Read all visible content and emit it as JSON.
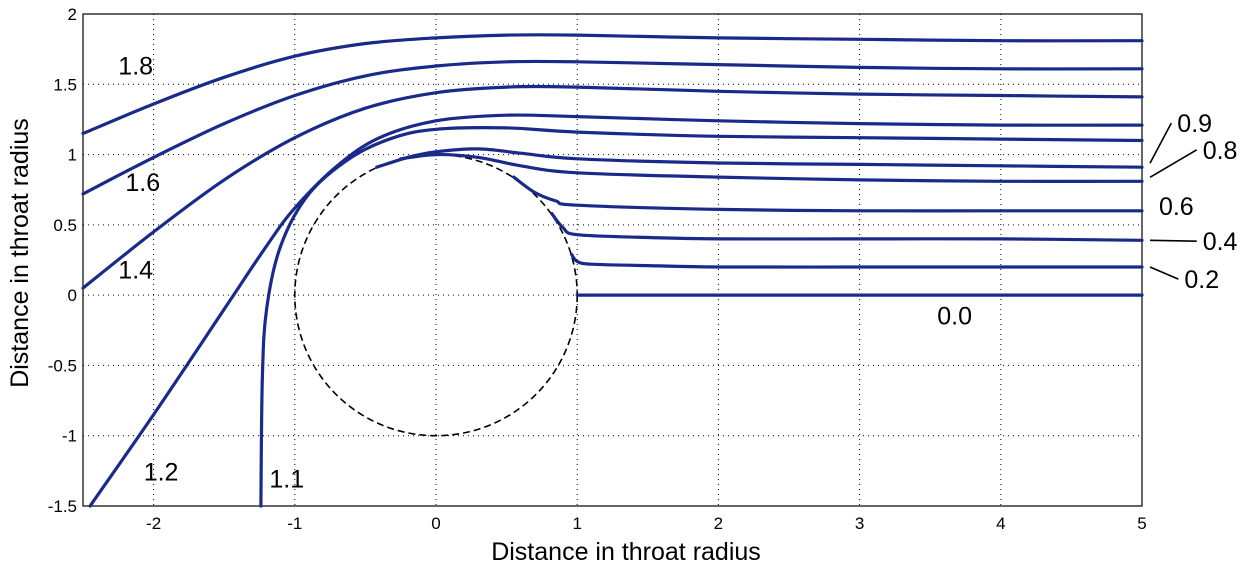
{
  "chart_data": {
    "type": "line",
    "title": "",
    "xlabel": "Distance in throat radius",
    "ylabel": "Distance in throat radius",
    "xlim": [
      -2.5,
      5
    ],
    "ylim": [
      -1.5,
      2
    ],
    "x_ticks": [
      "-2",
      "-1",
      "0",
      "1",
      "2",
      "3",
      "4",
      "5"
    ],
    "y_ticks": [
      "-1.5",
      "-1",
      "-0.5",
      "0",
      "0.5",
      "1",
      "1.5",
      "2"
    ],
    "grid": true,
    "line_color": "#1a2a8a",
    "reference_circle": {
      "center": [
        0,
        0
      ],
      "radius": 1,
      "style": "dashed"
    },
    "series": [
      {
        "name": "1.8",
        "points": [
          [
            -2.5,
            1.15
          ],
          [
            -2,
            1.36
          ],
          [
            -1.5,
            1.55
          ],
          [
            -1,
            1.7
          ],
          [
            -0.5,
            1.79
          ],
          [
            0,
            1.83
          ],
          [
            0.5,
            1.85
          ],
          [
            1,
            1.85
          ],
          [
            2,
            1.83
          ],
          [
            3,
            1.82
          ],
          [
            4,
            1.81
          ],
          [
            5,
            1.81
          ]
        ]
      },
      {
        "name": "1.6",
        "points": [
          [
            -2.5,
            0.72
          ],
          [
            -2,
            0.98
          ],
          [
            -1.5,
            1.22
          ],
          [
            -1,
            1.42
          ],
          [
            -0.5,
            1.56
          ],
          [
            0,
            1.63
          ],
          [
            0.5,
            1.66
          ],
          [
            1,
            1.66
          ],
          [
            2,
            1.64
          ],
          [
            3,
            1.62
          ],
          [
            4,
            1.61
          ],
          [
            5,
            1.61
          ]
        ]
      },
      {
        "name": "1.4",
        "points": [
          [
            -2.5,
            0.05
          ],
          [
            -2,
            0.45
          ],
          [
            -1.5,
            0.82
          ],
          [
            -1,
            1.12
          ],
          [
            -0.5,
            1.33
          ],
          [
            0,
            1.44
          ],
          [
            0.5,
            1.48
          ],
          [
            1,
            1.48
          ],
          [
            2,
            1.45
          ],
          [
            3,
            1.43
          ],
          [
            4,
            1.42
          ],
          [
            5,
            1.41
          ]
        ]
      },
      {
        "name": "1.2",
        "points": [
          [
            -2.45,
            -1.5
          ],
          [
            -2,
            -0.85
          ],
          [
            -1.5,
            -0.1
          ],
          [
            -1.2,
            0.35
          ],
          [
            -1,
            0.62
          ],
          [
            -0.7,
            0.92
          ],
          [
            -0.4,
            1.12
          ],
          [
            0,
            1.24
          ],
          [
            0.5,
            1.28
          ],
          [
            1,
            1.27
          ],
          [
            2,
            1.24
          ],
          [
            3,
            1.22
          ],
          [
            4,
            1.21
          ],
          [
            5,
            1.21
          ]
        ]
      },
      {
        "name": "1.1",
        "points": [
          [
            -1.24,
            -1.5
          ],
          [
            -1.23,
            -0.6
          ],
          [
            -1.2,
            -0.1
          ],
          [
            -1.1,
            0.35
          ],
          [
            -0.9,
            0.72
          ],
          [
            -0.6,
            0.98
          ],
          [
            -0.3,
            1.12
          ],
          [
            0,
            1.18
          ],
          [
            0.5,
            1.19
          ],
          [
            1,
            1.16
          ],
          [
            2,
            1.13
          ],
          [
            3,
            1.12
          ],
          [
            4,
            1.11
          ],
          [
            5,
            1.1
          ]
        ]
      },
      {
        "name": "0.9",
        "points": [
          [
            -0.42,
            0.91
          ],
          [
            -0.2,
            0.98
          ],
          [
            0,
            1.02
          ],
          [
            0.3,
            1.04
          ],
          [
            0.6,
            1.01
          ],
          [
            1,
            0.97
          ],
          [
            2,
            0.94
          ],
          [
            3,
            0.93
          ],
          [
            4,
            0.92
          ],
          [
            5,
            0.91
          ]
        ]
      },
      {
        "name": "0.8",
        "points": [
          [
            -0.25,
            0.97
          ],
          [
            0,
            1.0
          ],
          [
            0.3,
            0.98
          ],
          [
            0.6,
            0.92
          ],
          [
            1,
            0.87
          ],
          [
            2,
            0.84
          ],
          [
            3,
            0.82
          ],
          [
            4,
            0.81
          ],
          [
            5,
            0.81
          ]
        ]
      },
      {
        "name": "0.6",
        "points": [
          [
            0.55,
            0.84
          ],
          [
            0.7,
            0.73
          ],
          [
            0.85,
            0.67
          ],
          [
            1,
            0.64
          ],
          [
            2,
            0.61
          ],
          [
            3,
            0.6
          ],
          [
            4,
            0.6
          ],
          [
            5,
            0.6
          ]
        ]
      },
      {
        "name": "0.4",
        "points": [
          [
            0.82,
            0.58
          ],
          [
            0.9,
            0.48
          ],
          [
            1,
            0.43
          ],
          [
            1.5,
            0.41
          ],
          [
            2,
            0.4
          ],
          [
            3,
            0.4
          ],
          [
            4,
            0.4
          ],
          [
            5,
            0.39
          ]
        ]
      },
      {
        "name": "0.2",
        "points": [
          [
            0.96,
            0.29
          ],
          [
            1.0,
            0.24
          ],
          [
            1.1,
            0.22
          ],
          [
            1.5,
            0.21
          ],
          [
            2,
            0.2
          ],
          [
            3,
            0.2
          ],
          [
            4,
            0.2
          ],
          [
            5,
            0.2
          ]
        ]
      },
      {
        "name": "0.0",
        "points": [
          [
            1,
            0
          ],
          [
            2,
            0
          ],
          [
            3,
            0
          ],
          [
            4,
            0
          ],
          [
            5,
            0
          ]
        ]
      }
    ],
    "curve_labels": [
      {
        "text": "1.8",
        "x": -2.25,
        "y": 1.57
      },
      {
        "text": "1.6",
        "x": -2.2,
        "y": 0.74
      },
      {
        "text": "1.4",
        "x": -2.25,
        "y": 0.12
      },
      {
        "text": "1.2",
        "x": -2.07,
        "y": -1.32
      },
      {
        "text": "1.1",
        "x": -1.18,
        "y": -1.37
      },
      {
        "text": "0.9",
        "x": 5.25,
        "y": 1.16
      },
      {
        "text": "0.8",
        "x": 5.43,
        "y": 0.97
      },
      {
        "text": "0.6",
        "x": 5.12,
        "y": 0.57
      },
      {
        "text": "0.4",
        "x": 5.43,
        "y": 0.32
      },
      {
        "text": "0.2",
        "x": 5.3,
        "y": 0.05
      },
      {
        "text": "0.0",
        "x": 3.55,
        "y": -0.21
      }
    ]
  }
}
